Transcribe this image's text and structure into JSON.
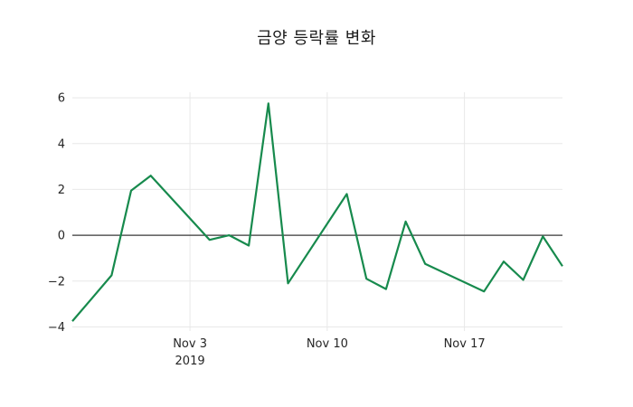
{
  "chart_data": {
    "type": "line",
    "title": "금양 등락률 변화",
    "series": [
      {
        "name": "금양 등락률",
        "dates": [
          "2019-10-28",
          "2019-10-29",
          "2019-10-30",
          "2019-10-31",
          "2019-11-01",
          "2019-11-04",
          "2019-11-05",
          "2019-11-06",
          "2019-11-07",
          "2019-11-08",
          "2019-11-11",
          "2019-11-12",
          "2019-11-13",
          "2019-11-14",
          "2019-11-15",
          "2019-11-18",
          "2019-11-19",
          "2019-11-20",
          "2019-11-21",
          "2019-11-22"
        ],
        "day_offsets": [
          0,
          1,
          2,
          3,
          4,
          7,
          8,
          9,
          10,
          11,
          14,
          15,
          16,
          17,
          18,
          21,
          22,
          23,
          24,
          25
        ],
        "values": [
          -3.75,
          -2.75,
          -1.75,
          1.95,
          2.6,
          -0.2,
          0.0,
          -0.45,
          5.75,
          -2.1,
          1.8,
          -1.9,
          -2.35,
          0.6,
          -1.25,
          -2.45,
          -1.15,
          -1.95,
          -0.05,
          -1.35
        ]
      }
    ],
    "x_ticks": [
      {
        "label": "Nov 3",
        "sublabel": "2019",
        "day_offset": 6
      },
      {
        "label": "Nov 10",
        "sublabel": "",
        "day_offset": 13
      },
      {
        "label": "Nov 17",
        "sublabel": "",
        "day_offset": 20
      }
    ],
    "y_ticks": [
      -4,
      -2,
      0,
      2,
      4,
      6
    ],
    "ylim": [
      -4.18,
      6.24
    ],
    "x_range_days": [
      0,
      25
    ],
    "xlabel": "",
    "ylabel": "",
    "grid": "on",
    "legend": "none",
    "zero_line": true,
    "colors": {
      "line": "#178a4d",
      "grid": "#e8e8e8",
      "zero_line": "#3a3a3a",
      "text": "#262626",
      "background": "#ffffff"
    }
  }
}
